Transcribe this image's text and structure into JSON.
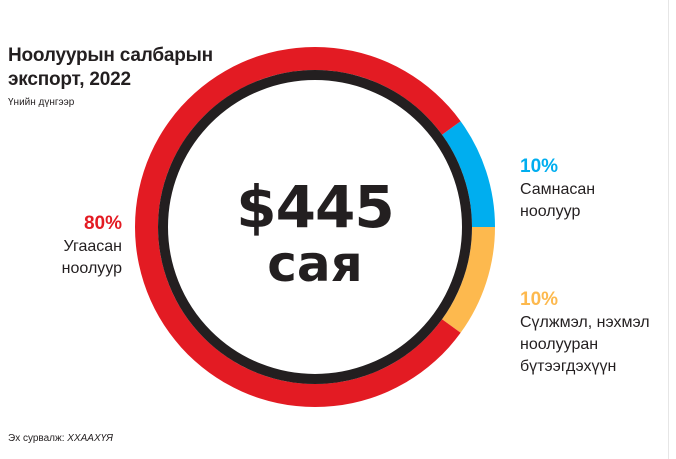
{
  "chart_data": {
    "type": "pie",
    "title": "Ноолуурын салбарын экспорт, 2022",
    "subtitle": "Үнийн дүнгээр",
    "center_value": "$445",
    "center_unit": "сая",
    "slices": [
      {
        "label": "Угаасан ноолуур",
        "name_lines": [
          "Угаасан",
          "ноолуур"
        ],
        "percent_text": "80%",
        "value": 80,
        "color": "#e31b23"
      },
      {
        "label": "Самнасан ноолуур",
        "name_lines": [
          "Самнасан",
          "ноолуур"
        ],
        "percent_text": "10%",
        "value": 10,
        "color": "#00aeef"
      },
      {
        "label": "Сүлжмэл, нэхмэл ноолууран бүтээгдэхүүн",
        "name_lines": [
          "Сүлжмэл, нэхмэл",
          "ноолууран",
          "бүтээгдэхүүн"
        ],
        "percent_text": "10%",
        "value": 10,
        "color": "#fdb94e"
      }
    ],
    "inner_ring_color": "#231f20",
    "percent_colors": [
      "#e31b23",
      "#00aeef",
      "#fdb94e"
    ],
    "source_label": "Эх сурвалж:",
    "source_value": "ХХААХҮЯ"
  }
}
